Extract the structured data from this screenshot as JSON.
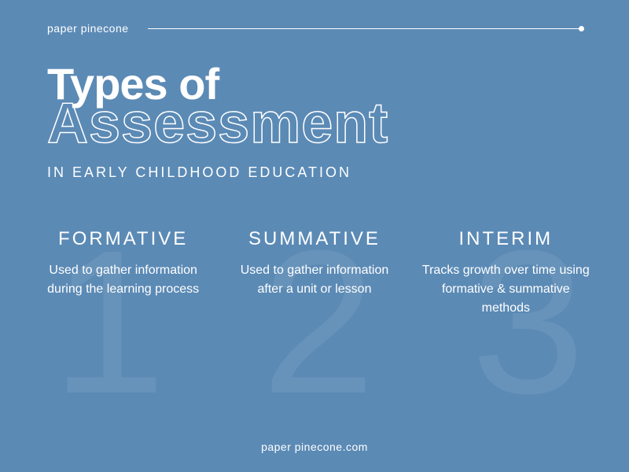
{
  "colors": {
    "background": "#5b8ab5",
    "text": "#ffffff",
    "watermark": "rgba(255,255,255,0.08)"
  },
  "header": {
    "brand": "paper pinecone"
  },
  "title": {
    "line1": "Types of",
    "line2": "Assessment",
    "subtitle": "IN EARLY CHILDHOOD EDUCATION"
  },
  "watermark_numbers": [
    "1",
    "2",
    "3"
  ],
  "columns": [
    {
      "title": "FORMATIVE",
      "desc": "Used to gather information during the learning process"
    },
    {
      "title": "SUMMATIVE",
      "desc": "Used to gather information after a unit or lesson"
    },
    {
      "title": "INTERIM",
      "desc": "Tracks growth over time using formative & summative methods"
    }
  ],
  "footer": "paper pinecone.com",
  "typography": {
    "brand_fontsize": 14,
    "title_solid_fontsize": 56,
    "title_outline_fontsize": 72,
    "subtitle_fontsize": 18,
    "col_title_fontsize": 24,
    "col_desc_fontsize": 16,
    "watermark_fontsize": 260
  }
}
